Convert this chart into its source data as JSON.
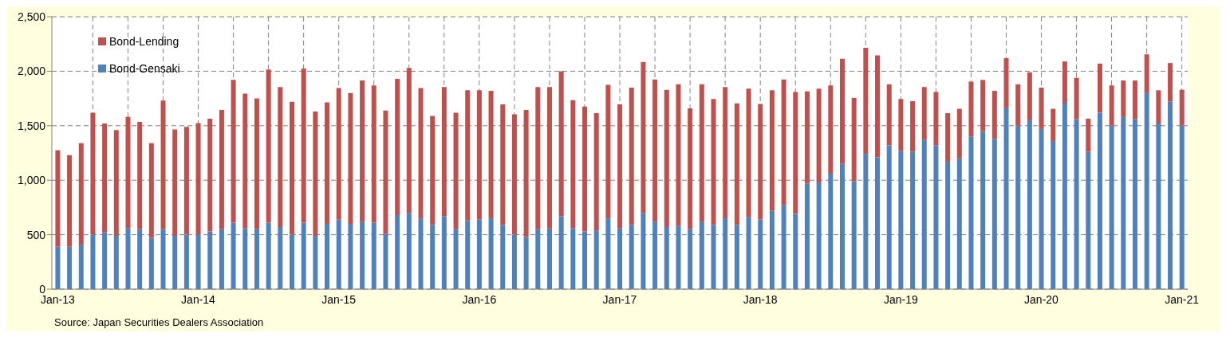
{
  "chart_data": {
    "type": "bar",
    "stacked": true,
    "categories": [
      "Jan-13",
      null,
      null,
      null,
      null,
      null,
      null,
      null,
      null,
      null,
      null,
      null,
      "Jan-14",
      null,
      null,
      null,
      null,
      null,
      null,
      null,
      null,
      null,
      null,
      null,
      "Jan-15",
      null,
      null,
      null,
      null,
      null,
      null,
      null,
      null,
      null,
      null,
      null,
      "Jan-16",
      null,
      null,
      null,
      null,
      null,
      null,
      null,
      null,
      null,
      null,
      null,
      "Jan-17",
      null,
      null,
      null,
      null,
      null,
      null,
      null,
      null,
      null,
      null,
      null,
      "Jan-18",
      null,
      null,
      null,
      null,
      null,
      null,
      null,
      null,
      null,
      null,
      null,
      "Jan-19",
      null,
      null,
      null,
      null,
      null,
      null,
      null,
      null,
      null,
      null,
      null,
      "Jan-20",
      null,
      null,
      null,
      null,
      null,
      null,
      null,
      null,
      null,
      null,
      null,
      "Jan-21"
    ],
    "series": [
      {
        "name": "Bond-Gensaki",
        "color": "#4f81bd",
        "values": [
          390,
          390,
          410,
          500,
          520,
          490,
          560,
          550,
          470,
          550,
          490,
          500,
          500,
          530,
          550,
          610,
          560,
          550,
          610,
          570,
          500,
          610,
          490,
          600,
          640,
          600,
          620,
          610,
          510,
          680,
          700,
          650,
          590,
          670,
          550,
          630,
          640,
          650,
          590,
          500,
          480,
          550,
          560,
          670,
          560,
          530,
          540,
          650,
          560,
          590,
          700,
          620,
          570,
          580,
          550,
          620,
          590,
          650,
          590,
          660,
          640,
          720,
          770,
          690,
          970,
          980,
          1060,
          1150,
          990,
          1240,
          1210,
          1320,
          1270,
          1260,
          1370,
          1320,
          1170,
          1200,
          1400,
          1450,
          1380,
          1660,
          1500,
          1550,
          1470,
          1360,
          1710,
          1560,
          1260,
          1620,
          1500,
          1580,
          1560,
          1800,
          1520,
          1720,
          1500
        ]
      },
      {
        "name": "Bond-Lending",
        "color": "#c0504d",
        "values": [
          885,
          840,
          930,
          1120,
          1000,
          970,
          1020,
          985,
          870,
          1180,
          975,
          990,
          1025,
          1035,
          1095,
          1310,
          1235,
          1200,
          1405,
          1285,
          1220,
          1415,
          1140,
          1115,
          1205,
          1200,
          1295,
          1260,
          1130,
          1250,
          1330,
          1195,
          1000,
          1185,
          1070,
          1195,
          1185,
          1170,
          1105,
          1105,
          1165,
          1305,
          1295,
          1330,
          1175,
          1145,
          1075,
          1225,
          1135,
          1260,
          1385,
          1305,
          1260,
          1300,
          1110,
          1260,
          1155,
          1205,
          1115,
          1180,
          1060,
          1105,
          1155,
          1120,
          845,
          860,
          810,
          965,
          765,
          975,
          935,
          560,
          475,
          465,
          485,
          490,
          445,
          455,
          505,
          470,
          440,
          460,
          380,
          440,
          380,
          295,
          380,
          380,
          305,
          450,
          370,
          335,
          355,
          355,
          305,
          355,
          330
        ]
      }
    ],
    "ylim": [
      0,
      2500
    ],
    "yticks": [
      0,
      {
        "value": 500,
        "label": "500"
      },
      {
        "value": 1000,
        "label": "1,000"
      },
      {
        "value": 1500,
        "label": "1,500"
      },
      {
        "value": 2000,
        "label": "2,000"
      },
      {
        "value": 2500,
        "label": "2,500"
      }
    ],
    "grid": true,
    "legend": "top left",
    "annotations": [
      "Source: Japan Securities Dealers Association"
    ]
  }
}
